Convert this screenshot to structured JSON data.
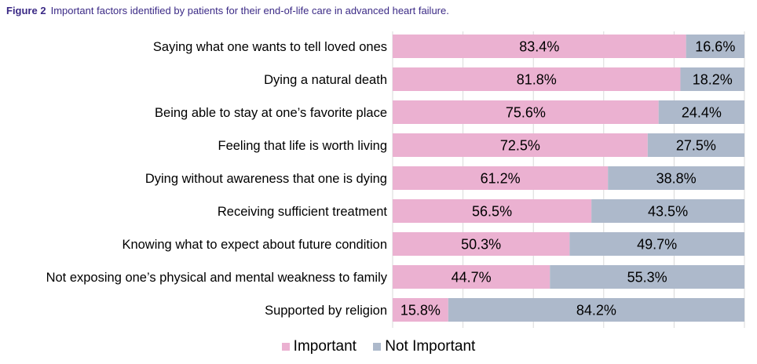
{
  "caption": {
    "figure_label": "Figure 2",
    "text": "Important factors identified by patients for their end-of-life care in advanced heart failure."
  },
  "colors": {
    "important": "#ebb1d1",
    "not_important": "#adb9cb",
    "grid": "#d9d9d9"
  },
  "chart_data": {
    "type": "bar",
    "orientation": "horizontal",
    "stacked": "100%",
    "categories": [
      "Saying what one wants to tell loved ones",
      "Dying a natural death",
      "Being able to stay at one’s favorite place",
      "Feeling that life is worth living",
      "Dying without awareness that one is dying",
      "Receiving sufficient treatment",
      "Knowing what to expect about future condition",
      "Not exposing one’s physical and mental weakness to family",
      "Supported by religion"
    ],
    "series": [
      {
        "name": "Important",
        "values": [
          83.4,
          81.8,
          75.6,
          72.5,
          61.2,
          56.5,
          50.3,
          44.7,
          15.8
        ],
        "labels": [
          "83.4%",
          "81.8%",
          "75.6%",
          "72.5%",
          "61.2%",
          "56.5%",
          "50.3%",
          "44.7%",
          "15.8%"
        ]
      },
      {
        "name": "Not Important",
        "values": [
          16.6,
          18.2,
          24.4,
          27.5,
          38.8,
          43.5,
          49.7,
          55.3,
          84.2
        ],
        "labels": [
          "16.6%",
          "18.2%",
          "24.4%",
          "27.5%",
          "38.8%",
          "43.5%",
          "49.7%",
          "55.3%",
          "84.2%"
        ]
      }
    ],
    "xlim": [
      0,
      100
    ],
    "grid": true,
    "legend": "bottom"
  }
}
